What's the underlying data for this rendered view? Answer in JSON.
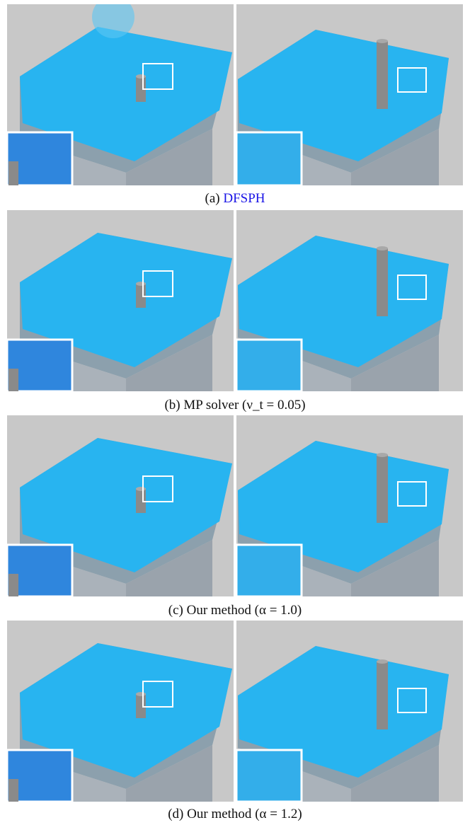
{
  "figure": {
    "rows": [
      {
        "id": "a",
        "label": "(a)",
        "method": "DFSPH",
        "param": ""
      },
      {
        "id": "b",
        "label": "(b)",
        "method": "MP solver",
        "param": "(ν_t = 0.05)"
      },
      {
        "id": "c",
        "label": "(c)",
        "method": "Our method",
        "param": "(α = 1.0)"
      },
      {
        "id": "d",
        "label": "(d)",
        "method": "Our method",
        "param": "(α = 1.2)"
      }
    ]
  },
  "colors": {
    "fluid": "#28b4f0",
    "fluid_dark": "#1e64d2",
    "container": "#b0b6bd",
    "background": "#c9c9c9",
    "inset_border": "#ffffff",
    "link": "#1a14e6"
  }
}
